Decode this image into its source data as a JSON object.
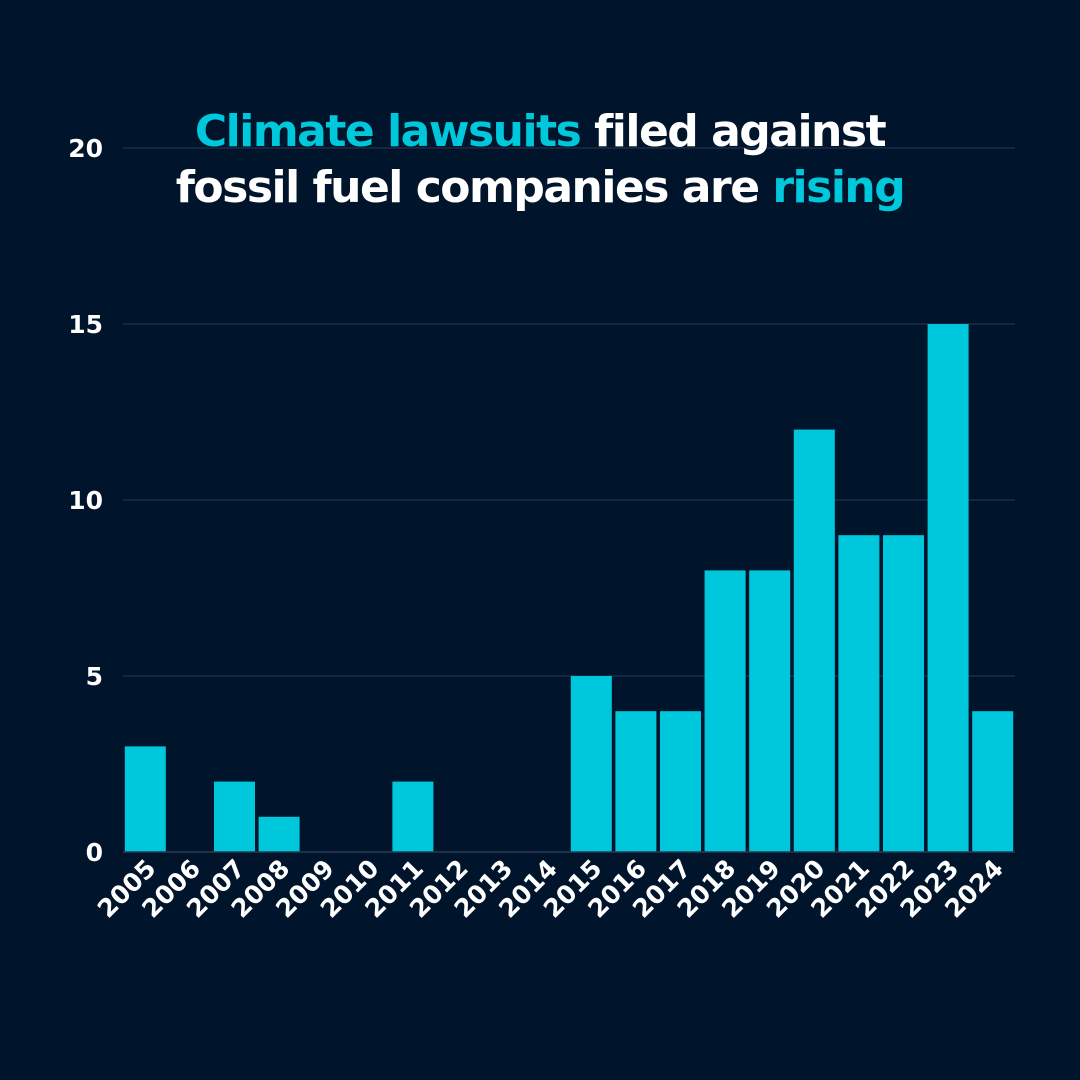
{
  "colors": {
    "background": "#00142B",
    "bar": "#00C8DC",
    "text": "#FFFFFF",
    "accent": "#00C8DC",
    "grid": "#2A3A55"
  },
  "title": {
    "line1_accent": "Climate lawsuits",
    "line1_rest": " filed against",
    "line2_rest": "fossil fuel companies are ",
    "line2_accent": "rising"
  },
  "chart_data": {
    "type": "bar",
    "title": "Climate lawsuits filed against fossil fuel companies are rising",
    "xlabel": "",
    "ylabel": "",
    "categories": [
      "2005",
      "2006",
      "2007",
      "2008",
      "2009",
      "2010",
      "2011",
      "2012",
      "2013",
      "2014",
      "2015",
      "2016",
      "2017",
      "2018",
      "2019",
      "2020",
      "2021",
      "2022",
      "2023",
      "2024"
    ],
    "values": [
      3,
      0,
      2,
      1,
      0,
      0,
      2,
      0,
      0,
      0,
      5,
      4,
      4,
      8,
      8,
      12,
      9,
      9,
      15,
      4
    ],
    "ylim": [
      0,
      20
    ],
    "yticks": [
      "0",
      "5",
      "10",
      "15",
      "20"
    ],
    "grid": true,
    "legend": "none"
  }
}
